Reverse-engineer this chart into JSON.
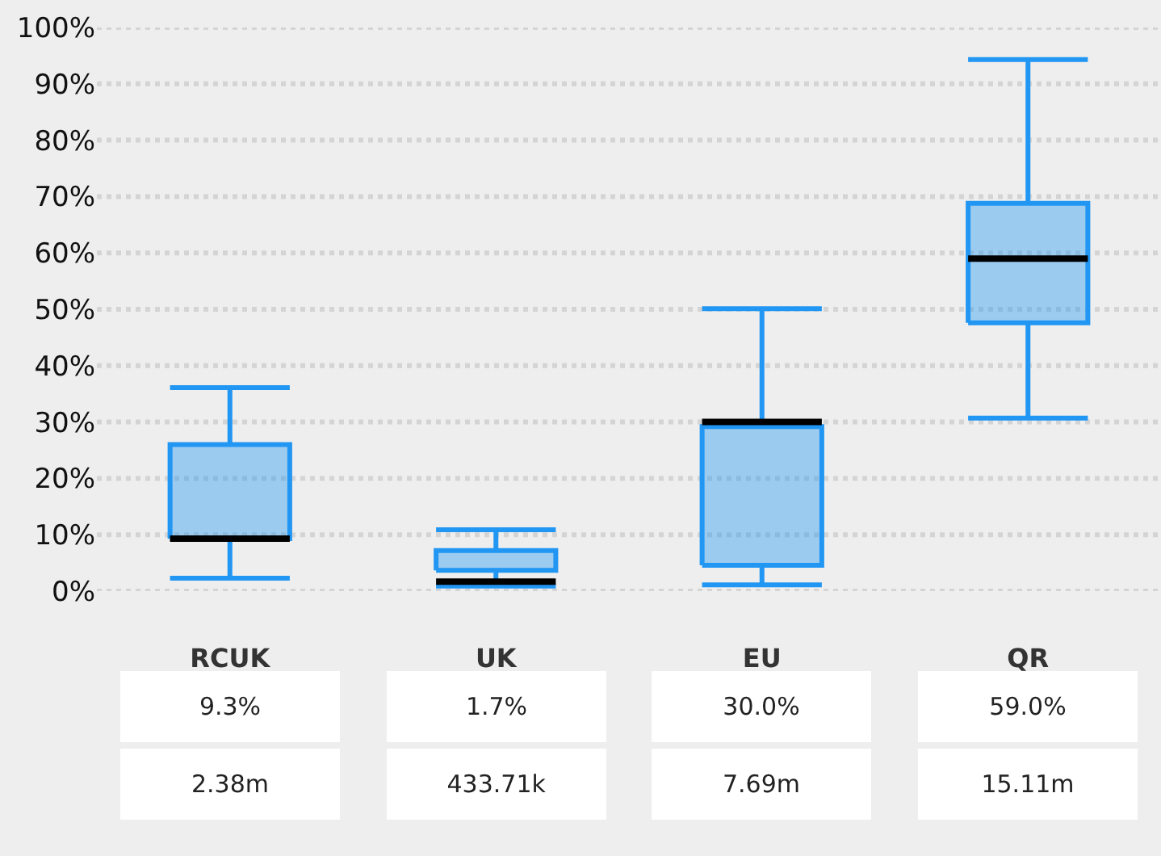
{
  "chart_data": {
    "type": "box",
    "categories": [
      "RCUK",
      "UK",
      "EU",
      "QR"
    ],
    "series": [
      {
        "color": "#2196f3",
        "boxes": [
          {
            "low": 2.3,
            "q1": 9.3,
            "median": 9.3,
            "q3": 26.0,
            "high": 36.1
          },
          {
            "low": 0.9,
            "q1": 3.7,
            "median": 1.7,
            "q3": 7.2,
            "high": 10.9
          },
          {
            "low": 1.1,
            "q1": 4.6,
            "median": 30.0,
            "q3": 29.2,
            "high": 50.1
          },
          {
            "low": 30.7,
            "q1": 47.6,
            "median": 59.0,
            "q3": 68.8,
            "high": 94.3
          }
        ]
      }
    ],
    "value_labels": [
      "9.3%",
      "1.7%",
      "30.0%",
      "59.0%"
    ],
    "annotations": [
      "2.38m",
      "433.71k",
      "7.69m",
      "15.11m"
    ],
    "ylim": [
      0,
      100
    ],
    "yticks": [
      {
        "value": 0,
        "label": "0%"
      },
      {
        "value": 10,
        "label": "10%"
      },
      {
        "value": 20,
        "label": "20%"
      },
      {
        "value": 30,
        "label": "30%"
      },
      {
        "value": 40,
        "label": "40%"
      },
      {
        "value": 50,
        "label": "50%"
      },
      {
        "value": 60,
        "label": "60%"
      },
      {
        "value": 70,
        "label": "70%"
      },
      {
        "value": 80,
        "label": "80%"
      },
      {
        "value": 90,
        "label": "90%"
      },
      {
        "value": 100,
        "label": "100%"
      }
    ],
    "grid": "y"
  }
}
